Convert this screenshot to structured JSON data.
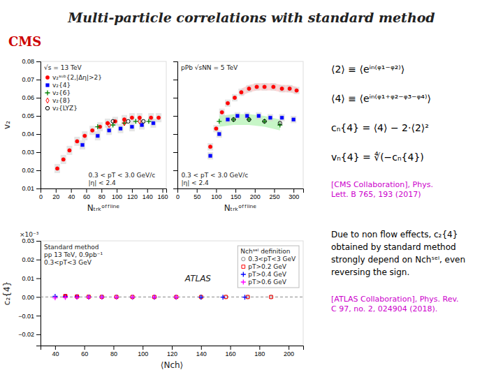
{
  "title": "Multi-particle correlations with standard method",
  "annotations": [
    {
      "text": "CMS",
      "color": "#cc0000"
    },
    {
      "text": "⟨2⟩ ≡ ⟨eⁱⁿ⁽ᵠ¹⁻ᵠ²⁾⟩",
      "color": "black"
    },
    {
      "text": "⟨4⟩ ≡ ⟨eⁱⁿ⁽ᵠ¹⁺ᵠ²⁻ᵠ³⁻ᵠ⁴⁾⟩",
      "color": "black"
    },
    {
      "text": "cₙ{4} = ⟨4⟩ − 2·⟨2⟩²",
      "color": "black"
    },
    {
      "text": "vₙ{4} = ∜(−cₙ{4})",
      "color": "black"
    },
    {
      "text": "[CMS Collaboration], Phys.\nLett. B 765, 193 (2017)",
      "color": "#cc00cc"
    },
    {
      "text": "Due to non flow effects, c₂{4}\nobtained by standard method\nstrongly depend on Nchˢᵉˡ, even\nreversing the sign.",
      "color": "#000000"
    },
    {
      "text": "[ATLAS Collaboration], Phys. Rev.\nC 97, no. 2, 024904 (2018).",
      "color": "#cc00cc"
    }
  ],
  "chart_data": [
    {
      "type": "scatter",
      "x_label": "Nₜᵣₖᵒᶠᶠˡⁱⁿᵉ",
      "y_label": "v₂",
      "xlim": [
        0,
        165
      ],
      "ylim": [
        0.01,
        0.08
      ],
      "xticks": [
        0,
        20,
        40,
        60,
        80,
        100,
        120,
        140,
        160
      ],
      "yticks": [
        0.01,
        0.02,
        0.03,
        0.04,
        0.05,
        0.06,
        0.07,
        0.08
      ],
      "legend": "upper left",
      "annotations": [
        "√s = 13 TeV",
        "0.3 < pT < 3.0 GeV/c",
        "|η| < 2.4"
      ],
      "series": [
        {
          "name": "v₂ˢᵘᵇ{2,|Δη|>2}",
          "marker": "circle",
          "color": "red",
          "x": [
            22,
            30,
            38,
            48,
            58,
            68,
            78,
            88,
            98,
            110,
            120,
            130,
            145,
            155
          ],
          "values": [
            0.021,
            0.026,
            0.031,
            0.036,
            0.039,
            0.042,
            0.044,
            0.046,
            0.047,
            0.048,
            0.049,
            0.049,
            0.049,
            0.049
          ],
          "box_errors": [
            0.0025,
            0.0025,
            0.0025,
            0.0025,
            0.0025,
            0.0025,
            0.0025,
            0.0025,
            0.0025,
            0.0025,
            0.0025,
            0.0025,
            0.0025,
            0.0025
          ]
        },
        {
          "name": "v₂{4}",
          "marker": "square",
          "color": "blue",
          "x": [
            55,
            75,
            90,
            105,
            120,
            133,
            148
          ],
          "values": [
            0.034,
            0.039,
            0.042,
            0.043,
            0.044,
            0.045,
            0.046
          ],
          "box_errors": [
            0.0025,
            0.0025,
            0.0025,
            0.0025,
            0.0025,
            0.0025,
            0.0025
          ]
        },
        {
          "name": "v₂{6}",
          "marker": "plus",
          "color": "green",
          "x": [
            75,
            95,
            110,
            125,
            142
          ],
          "values": [
            0.044,
            0.045,
            0.046,
            0.047,
            0.047
          ]
        },
        {
          "name": "v₂{8}",
          "marker": "diamond-open",
          "color": "red",
          "x": [
            90,
            110,
            130
          ],
          "values": [
            0.045,
            0.046,
            0.047
          ]
        },
        {
          "name": "v₂{LYZ}",
          "marker": "circle-open",
          "color": "black",
          "x": [
            95,
            115,
            135
          ],
          "values": [
            0.047,
            0.047,
            0.047
          ]
        }
      ]
    },
    {
      "type": "scatter",
      "x_label": "Nₜᵣₖᵒᶠᶠˡⁱⁿᵉ",
      "xlim": [
        0,
        325
      ],
      "ylim": [
        0.01,
        0.08
      ],
      "xticks": [
        0,
        50,
        100,
        150,
        200,
        250,
        300
      ],
      "yticks": [
        0.01,
        0.02,
        0.03,
        0.04,
        0.05,
        0.06,
        0.07,
        0.08
      ],
      "tick_labels": "x",
      "annotations": [
        "pPb √sNN = 5 TeV",
        "0.3 < pT < 3.0 GeV/c",
        "|η| < 2.4"
      ],
      "series": [
        {
          "marker": "circle",
          "color": "red",
          "x": [
            85,
            100,
            115,
            130,
            148,
            165,
            185,
            205,
            225,
            248,
            270,
            290,
            308
          ],
          "values": [
            0.033,
            0.043,
            0.052,
            0.057,
            0.06,
            0.063,
            0.065,
            0.066,
            0.066,
            0.066,
            0.065,
            0.065,
            0.064
          ],
          "box_errors": [
            0.002,
            0.002,
            0.002,
            0.002,
            0.002,
            0.002,
            0.002,
            0.002,
            0.002,
            0.002,
            0.002,
            0.002,
            0.002
          ]
        },
        {
          "type": "band",
          "color": "#ffaaaa",
          "x": [
            165,
            185,
            205,
            225,
            248,
            270,
            290,
            308
          ],
          "lower": [
            0.061,
            0.063,
            0.064,
            0.064,
            0.064,
            0.063,
            0.063,
            0.062
          ],
          "upper": [
            0.065,
            0.067,
            0.068,
            0.068,
            0.068,
            0.067,
            0.067,
            0.066
          ]
        },
        {
          "marker": "square",
          "color": "blue",
          "x": [
            85,
            108,
            130,
            155,
            180,
            210,
            240,
            270,
            300
          ],
          "values": [
            0.028,
            0.04,
            0.048,
            0.05,
            0.05,
            0.05,
            0.049,
            0.049,
            0.048
          ],
          "box_errors": [
            0.002,
            0.002,
            0.002,
            0.002,
            0.002,
            0.002,
            0.002,
            0.002,
            0.002
          ]
        },
        {
          "marker": "plus",
          "color": "green",
          "x": [
            108,
            145,
            185,
            225,
            265
          ],
          "values": [
            0.047,
            0.048,
            0.048,
            0.047,
            0.045
          ]
        },
        {
          "type": "band",
          "color": "lightgreen",
          "x": [
            108,
            145,
            185,
            225,
            265
          ],
          "lower": [
            0.044,
            0.045,
            0.045,
            0.044,
            0.042
          ],
          "upper": [
            0.05,
            0.051,
            0.051,
            0.05,
            0.048
          ]
        },
        {
          "marker": "circle-open",
          "color": "black",
          "x": [
            145,
            185,
            225,
            265
          ],
          "values": [
            0.048,
            0.048,
            0.047,
            0.046
          ]
        }
      ]
    },
    {
      "type": "scatter",
      "x_label": "⟨Nch⟩",
      "y_label": "c₂{4}",
      "xlim": [
        30,
        210
      ],
      "ylim": [
        -0.026,
        0.03
      ],
      "xticks": [
        40,
        60,
        80,
        100,
        120,
        140,
        160,
        180,
        200
      ],
      "yticks": [
        {
          "value": -0.02,
          "label": "−0.02"
        },
        {
          "value": -0.01,
          "label": "−0.01"
        },
        {
          "value": 0,
          "label": "0.00"
        },
        0.01,
        0.02,
        0.03
      ],
      "hlines": [
        0
      ],
      "legend": "upper right",
      "legend_title": "Nchˢᵉˡ definition",
      "annotations": [
        "Standard method",
        "pp 13 TeV, 0.9pb⁻¹",
        "0.3<pT<3 GeV",
        "ATLAS",
        "×10⁻³"
      ],
      "series": [
        {
          "name": "0.3<pT<3 GeV",
          "marker": "circle-open",
          "color": "#888888",
          "x": [
            47,
            55,
            63,
            72,
            82,
            93,
            108,
            123,
            140,
            157,
            172,
            188
          ],
          "values": [
            0.00038,
            0.0002,
            0.0001,
            4e-05,
            2e-05,
            0,
            -2e-05,
            -2e-05,
            -2e-05,
            0,
            -2e-05,
            -2e-05
          ]
        },
        {
          "name": "pT>0.2 GeV",
          "marker": "square-open",
          "color": "red",
          "x": [
            47,
            55,
            63,
            72,
            82,
            93,
            108,
            123,
            140,
            157,
            172,
            188
          ],
          "values": [
            0.00044,
            0.00024,
            0.00012,
            4e-05,
            2e-05,
            0,
            -2e-05,
            -2e-05,
            -2e-05,
            0,
            -2e-05,
            -2e-05
          ]
        },
        {
          "marker": "square",
          "color": "red",
          "x": [
            47,
            55
          ],
          "values": [
            0.00048,
            0.00026
          ]
        },
        {
          "name": "pT>0.4 GeV",
          "marker": "plus",
          "color": "blue",
          "x": [
            40,
            47,
            55,
            63,
            72,
            82,
            93,
            108,
            123,
            140,
            155,
            170
          ],
          "values": [
            0.00032,
            0.00016,
            6e-05,
            -2e-05,
            -6e-05,
            -8e-05,
            -0.0001,
            -0.0001,
            -0.0001,
            -0.0001,
            -0.0001,
            -0.0001
          ],
          "errors": [
            2e-05,
            2e-05,
            2e-05,
            2e-05,
            2e-05,
            2e-05,
            2e-05,
            2e-05,
            2e-05,
            2e-05,
            2e-05,
            2e-05
          ]
        },
        {
          "name": "pT>0.6 GeV",
          "marker": "plus",
          "color": "magenta",
          "x": [
            40,
            47,
            55,
            63,
            72,
            82,
            93,
            108,
            123
          ],
          "values": [
            -0.00044,
            -0.00024,
            -0.00016,
            -0.00012,
            -0.0001,
            -0.0001,
            -8e-05,
            -8e-05,
            -8e-05
          ]
        }
      ]
    }
  ]
}
